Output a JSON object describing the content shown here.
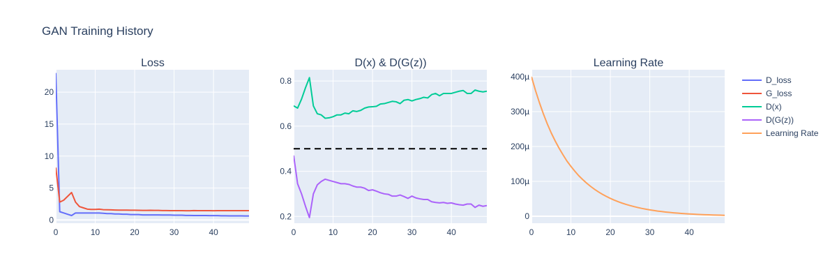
{
  "title": "GAN Training History",
  "legend": [
    {
      "label": "D_loss",
      "color": "#636efa"
    },
    {
      "label": "G_loss",
      "color": "#ef553b"
    },
    {
      "label": "D(x)",
      "color": "#00cc96"
    },
    {
      "label": "D(G(z))",
      "color": "#ab63fa"
    },
    {
      "label": "Learning Rate",
      "color": "#ffa15a"
    }
  ],
  "chart_data": [
    {
      "type": "line",
      "title": "Loss",
      "xlim": [
        0,
        49
      ],
      "ylim": [
        -0.5,
        23.5
      ],
      "xticks": [
        {
          "v": 0,
          "label": "0"
        },
        {
          "v": 10,
          "label": "10"
        },
        {
          "v": 20,
          "label": "20"
        },
        {
          "v": 30,
          "label": "30"
        },
        {
          "v": 40,
          "label": "40"
        }
      ],
      "yticks": [
        {
          "v": 0,
          "label": "0"
        },
        {
          "v": 5,
          "label": "5"
        },
        {
          "v": 10,
          "label": "10"
        },
        {
          "v": 15,
          "label": "15"
        },
        {
          "v": 20,
          "label": "20"
        }
      ],
      "series": [
        {
          "name": "D_loss",
          "color": "#636efa",
          "x": [
            0,
            1,
            2,
            3,
            4,
            5,
            6,
            7,
            8,
            9,
            10,
            11,
            12,
            13,
            14,
            15,
            16,
            17,
            18,
            19,
            20,
            21,
            22,
            23,
            24,
            25,
            26,
            27,
            28,
            29,
            30,
            31,
            32,
            33,
            34,
            35,
            36,
            37,
            38,
            39,
            40,
            41,
            42,
            43,
            44,
            45,
            46,
            47,
            48,
            49
          ],
          "y": [
            23.0,
            1.3,
            1.1,
            0.9,
            0.7,
            1.1,
            1.1,
            1.1,
            1.1,
            1.1,
            1.1,
            1.1,
            1.05,
            1.0,
            1.0,
            0.95,
            0.95,
            0.9,
            0.9,
            0.85,
            0.85,
            0.85,
            0.8,
            0.8,
            0.8,
            0.8,
            0.8,
            0.78,
            0.78,
            0.78,
            0.75,
            0.75,
            0.75,
            0.72,
            0.72,
            0.7,
            0.7,
            0.7,
            0.7,
            0.68,
            0.68,
            0.68,
            0.66,
            0.66,
            0.65,
            0.65,
            0.64,
            0.64,
            0.63,
            0.63
          ]
        },
        {
          "name": "G_loss",
          "color": "#ef553b",
          "x": [
            0,
            1,
            2,
            3,
            4,
            5,
            6,
            7,
            8,
            9,
            10,
            11,
            12,
            13,
            14,
            15,
            16,
            17,
            18,
            19,
            20,
            21,
            22,
            23,
            24,
            25,
            26,
            27,
            28,
            29,
            30,
            31,
            32,
            33,
            34,
            35,
            36,
            37,
            38,
            39,
            40,
            41,
            42,
            43,
            44,
            45,
            46,
            47,
            48,
            49
          ],
          "y": [
            8.2,
            2.8,
            3.1,
            3.7,
            4.3,
            2.8,
            2.1,
            1.9,
            1.7,
            1.65,
            1.65,
            1.7,
            1.62,
            1.6,
            1.58,
            1.56,
            1.55,
            1.55,
            1.54,
            1.53,
            1.53,
            1.52,
            1.5,
            1.5,
            1.52,
            1.5,
            1.5,
            1.48,
            1.48,
            1.47,
            1.47,
            1.46,
            1.46,
            1.45,
            1.45,
            1.48,
            1.47,
            1.47,
            1.46,
            1.46,
            1.45,
            1.46,
            1.46,
            1.46,
            1.46,
            1.46,
            1.46,
            1.46,
            1.46,
            1.46
          ]
        }
      ]
    },
    {
      "type": "line",
      "title": "D(x) & D(G(z))",
      "xlim": [
        0,
        49
      ],
      "ylim": [
        0.17,
        0.85
      ],
      "xticks": [
        {
          "v": 0,
          "label": "0"
        },
        {
          "v": 10,
          "label": "10"
        },
        {
          "v": 20,
          "label": "20"
        },
        {
          "v": 30,
          "label": "30"
        },
        {
          "v": 40,
          "label": "40"
        }
      ],
      "yticks": [
        {
          "v": 0.2,
          "label": "0.2"
        },
        {
          "v": 0.4,
          "label": "0.4"
        },
        {
          "v": 0.6,
          "label": "0.6"
        },
        {
          "v": 0.8,
          "label": "0.8"
        }
      ],
      "hline": {
        "y": 0.5,
        "color": "#000000",
        "dash": "dash"
      },
      "series": [
        {
          "name": "D(x)",
          "color": "#00cc96",
          "x": [
            0,
            1,
            2,
            3,
            4,
            5,
            6,
            7,
            8,
            9,
            10,
            11,
            12,
            13,
            14,
            15,
            16,
            17,
            18,
            19,
            20,
            21,
            22,
            23,
            24,
            25,
            26,
            27,
            28,
            29,
            30,
            31,
            32,
            33,
            34,
            35,
            36,
            37,
            38,
            39,
            40,
            41,
            42,
            43,
            44,
            45,
            46,
            47,
            48,
            49
          ],
          "y": [
            0.69,
            0.68,
            0.72,
            0.77,
            0.815,
            0.69,
            0.655,
            0.65,
            0.635,
            0.637,
            0.642,
            0.65,
            0.65,
            0.658,
            0.655,
            0.668,
            0.665,
            0.67,
            0.68,
            0.685,
            0.686,
            0.688,
            0.698,
            0.7,
            0.705,
            0.71,
            0.708,
            0.7,
            0.715,
            0.718,
            0.712,
            0.718,
            0.722,
            0.728,
            0.725,
            0.74,
            0.745,
            0.735,
            0.745,
            0.745,
            0.745,
            0.75,
            0.755,
            0.758,
            0.745,
            0.745,
            0.76,
            0.755,
            0.752,
            0.755
          ]
        },
        {
          "name": "D(G(z))",
          "color": "#ab63fa",
          "x": [
            0,
            1,
            2,
            3,
            4,
            5,
            6,
            7,
            8,
            9,
            10,
            11,
            12,
            13,
            14,
            15,
            16,
            17,
            18,
            19,
            20,
            21,
            22,
            23,
            24,
            25,
            26,
            27,
            28,
            29,
            30,
            31,
            32,
            33,
            34,
            35,
            36,
            37,
            38,
            39,
            40,
            41,
            42,
            43,
            44,
            45,
            46,
            47,
            48,
            49
          ],
          "y": [
            0.47,
            0.345,
            0.3,
            0.245,
            0.195,
            0.3,
            0.34,
            0.355,
            0.365,
            0.36,
            0.355,
            0.35,
            0.345,
            0.345,
            0.342,
            0.335,
            0.33,
            0.33,
            0.325,
            0.315,
            0.318,
            0.312,
            0.305,
            0.3,
            0.298,
            0.29,
            0.29,
            0.295,
            0.288,
            0.28,
            0.29,
            0.282,
            0.278,
            0.275,
            0.275,
            0.265,
            0.262,
            0.26,
            0.262,
            0.258,
            0.26,
            0.255,
            0.252,
            0.25,
            0.255,
            0.255,
            0.24,
            0.25,
            0.245,
            0.248
          ]
        }
      ]
    },
    {
      "type": "line",
      "title": "Learning Rate",
      "xlim": [
        0,
        49
      ],
      "ylim": [
        -2e-05,
        0.00042
      ],
      "xticks": [
        {
          "v": 0,
          "label": "0"
        },
        {
          "v": 10,
          "label": "10"
        },
        {
          "v": 20,
          "label": "20"
        },
        {
          "v": 30,
          "label": "30"
        },
        {
          "v": 40,
          "label": "40"
        }
      ],
      "yticks": [
        {
          "v": 0,
          "label": "0"
        },
        {
          "v": 0.0001,
          "label": "100µ"
        },
        {
          "v": 0.0002,
          "label": "200µ"
        },
        {
          "v": 0.0003,
          "label": "300µ"
        },
        {
          "v": 0.0004,
          "label": "400µ"
        }
      ],
      "series": [
        {
          "name": "Learning Rate",
          "color": "#ffa15a",
          "x": [
            0,
            1,
            2,
            3,
            4,
            5,
            6,
            7,
            8,
            9,
            10,
            11,
            12,
            13,
            14,
            15,
            16,
            17,
            18,
            19,
            20,
            21,
            22,
            23,
            24,
            25,
            26,
            27,
            28,
            29,
            30,
            31,
            32,
            33,
            34,
            35,
            36,
            37,
            38,
            39,
            40,
            41,
            42,
            43,
            44,
            45,
            46,
            47,
            48,
            49
          ],
          "y": [
            0.0004,
            0.000361,
            0.000326,
            0.000294,
            0.000265,
            0.000239,
            0.000216,
            0.000195,
            0.000176,
            0.000158,
            0.000143,
            0.000129,
            0.000116,
            0.000105,
            9.48e-05,
            8.55e-05,
            7.72e-05,
            6.96e-05,
            6.28e-05,
            5.67e-05,
            5.11e-05,
            4.61e-05,
            4.16e-05,
            3.75e-05,
            3.39e-05,
            3.06e-05,
            2.76e-05,
            2.49e-05,
            2.24e-05,
            2.02e-05,
            1.83e-05,
            1.65e-05,
            1.48e-05,
            1.34e-05,
            1.21e-05,
            1.09e-05,
            9.8e-06,
            8.9e-06,
            8e-06,
            7.2e-06,
            6.5e-06,
            5.9e-06,
            5.3e-06,
            4.8e-06,
            4.3e-06,
            3.9e-06,
            3.5e-06,
            3.2e-06,
            2.9e-06,
            2.6e-06
          ]
        }
      ]
    }
  ]
}
